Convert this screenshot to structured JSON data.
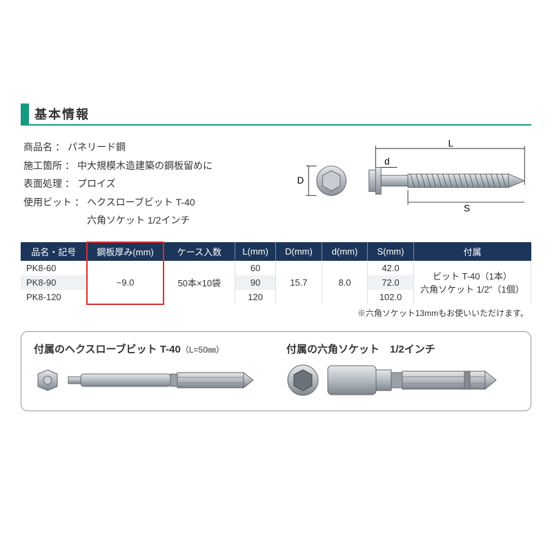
{
  "colors": {
    "accent": "#179a82",
    "tableHeaderBg": "#1c355a",
    "tableHeaderText": "#ffffff",
    "tableStripe": "#eef2f5",
    "highlight": "#d93030",
    "boxBorder": "#9a9a9a",
    "text": "#333333",
    "metalLight": "#d9dce0",
    "metalMid": "#b5bbc2",
    "metalDark": "#8a9098"
  },
  "heading": "基本情報",
  "info": [
    {
      "label": "商品名",
      "value": "パネリード鋼"
    },
    {
      "label": "施工箇所",
      "value": "中大規模木造建築の鋼板留めに"
    },
    {
      "label": "表面処理",
      "value": "プロイズ"
    },
    {
      "label": "使用ビット",
      "value": "ヘクスローブビット T-40",
      "sub": "六角ソケット 1/2インチ"
    }
  ],
  "diagram": {
    "labels": {
      "L": "L",
      "d": "d",
      "D": "D",
      "S": "S"
    }
  },
  "table": {
    "headers": [
      "品名・記号",
      "鋼板厚み(mm)",
      "ケース入数",
      "L(mm)",
      "D(mm)",
      "d(mm)",
      "S(mm)",
      "付属"
    ],
    "colWidthsPct": [
      13,
      15,
      14,
      8,
      9,
      9,
      9,
      23
    ],
    "rows": [
      {
        "name": "PK8-60",
        "L": "60",
        "S": "42.0"
      },
      {
        "name": "PK8-90",
        "L": "90",
        "S": "72.0"
      },
      {
        "name": "PK8-120",
        "L": "120",
        "S": "102.0"
      }
    ],
    "merged": {
      "thickness": "~9.0",
      "caseQty": "50本×10袋",
      "D": "15.7",
      "d": "8.0",
      "accessory": [
        "ビット T-40（1本）",
        "六角ソケット 1/2\"（1個）"
      ]
    },
    "highlightColumnIndex": 1
  },
  "footnote": "※六角ソケット13mmもお使いいただけます。",
  "accessories": [
    {
      "title": "付属のヘクスローブビット T-40",
      "sub": "（L=50㎜）"
    },
    {
      "title": "付属の六角ソケット　1/2インチ",
      "sub": ""
    }
  ]
}
